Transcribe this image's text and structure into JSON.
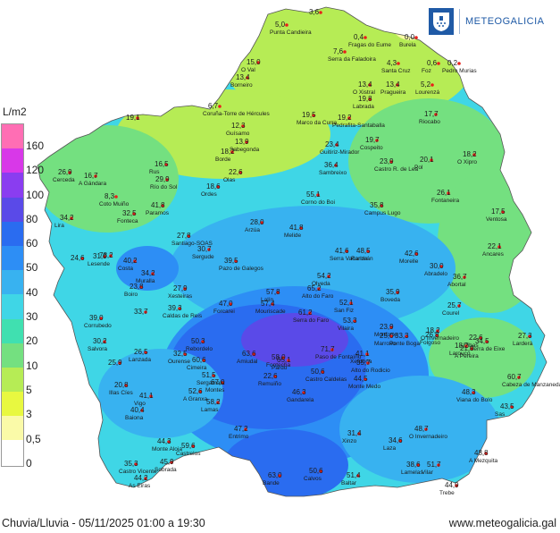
{
  "branding": {
    "name": "METEOGALICIA",
    "logo_icon": "galicia-shield-icon"
  },
  "legend": {
    "unit": "L/m2",
    "labels": [
      "160",
      "120",
      "100",
      "80",
      "60",
      "50",
      "40",
      "30",
      "20",
      "10",
      "5",
      "3",
      "0,5",
      "0"
    ],
    "colors": [
      "#ff6eb4",
      "#d838e8",
      "#8a3df0",
      "#5a4ae8",
      "#2a6cf0",
      "#2d8ef5",
      "#38b2f0",
      "#3fd6e6",
      "#40e0b0",
      "#74e080",
      "#b6ec55",
      "#e8f840",
      "#fafaa8",
      "#ffffff"
    ]
  },
  "footer": {
    "caption": "Chuvia/Lluvia - 05/11/2025 01:00 a 19:30",
    "url": "www.meteogalicia.gal"
  },
  "stations": [
    {
      "v": "5,0",
      "n": "Punta Candieira"
    },
    {
      "v": "3,6",
      "n": ""
    },
    {
      "v": "0,4",
      "n": "Fragas do Eume"
    },
    {
      "v": "7,6",
      "n": "Serra da Faladoira"
    },
    {
      "v": "0,0",
      "n": "Burela"
    },
    {
      "v": "15,0",
      "n": "O Val"
    },
    {
      "v": "4,3",
      "n": "Santa Cruz"
    },
    {
      "v": "0,6",
      "n": "Foz"
    },
    {
      "v": "0,2",
      "n": "Pedro Murias"
    },
    {
      "v": "13,4",
      "n": "O Xistral"
    },
    {
      "v": "13,4",
      "n": "Pragueira"
    },
    {
      "v": "5,2",
      "n": "Lourenzá"
    },
    {
      "v": "13,4",
      "n": "Borneiro"
    },
    {
      "v": "19,8",
      "n": "Labrada"
    },
    {
      "v": "6,7",
      "n": "Coruña-Torre de Hércules"
    },
    {
      "v": "19,1",
      "n": ""
    },
    {
      "v": "19,5",
      "n": "Marco da Curra"
    },
    {
      "v": "19,2",
      "n": "Pedrafita-Santaballa"
    },
    {
      "v": "17,7",
      "n": "Riocabo"
    },
    {
      "v": "12,3",
      "n": "Guísamo"
    },
    {
      "v": "13,9",
      "n": "Sabegonda"
    },
    {
      "v": "18,2",
      "n": "Borde"
    },
    {
      "v": "23,4",
      "n": "Guitiriz-Mirador"
    },
    {
      "v": "19,7",
      "n": "Cospeito"
    },
    {
      "v": "20,1",
      "n": "Pol"
    },
    {
      "v": "18,2",
      "n": "O Xipro"
    },
    {
      "v": "26,9",
      "n": "Cerceda"
    },
    {
      "v": "16,7",
      "n": "A Gándara"
    },
    {
      "v": "16,5",
      "n": "Rus"
    },
    {
      "v": "22,6",
      "n": "Olas"
    },
    {
      "v": "36,4",
      "n": "Sambreixo"
    },
    {
      "v": "23,9",
      "n": "Castro R. de Lea"
    },
    {
      "v": "29,9",
      "n": "Río do Sol"
    },
    {
      "v": "8,3",
      "n": "Coto Muiño"
    },
    {
      "v": "18,6",
      "n": "Ordes"
    },
    {
      "v": "55,1",
      "n": "Corno do Boi"
    },
    {
      "v": "41,8",
      "n": "Paramos"
    },
    {
      "v": "26,1",
      "n": "Fontaneira"
    },
    {
      "v": "32,5",
      "n": "Fonteca"
    },
    {
      "v": "35,8",
      "n": "Campus Lugo"
    },
    {
      "v": "17,5",
      "n": "Ventosa"
    },
    {
      "v": "34,2",
      "n": "Lira"
    },
    {
      "v": "28,0",
      "n": "Arzúa"
    },
    {
      "v": "41,8",
      "n": "Melide"
    },
    {
      "v": "27,8",
      "n": "Santiago-SOAS"
    },
    {
      "v": "30,7",
      "n": "Sergude"
    },
    {
      "v": "22,1",
      "n": "Ancares"
    },
    {
      "v": "24,6",
      "n": ""
    },
    {
      "v": "31,0",
      "n": "Lesende"
    },
    {
      "v": "41,6",
      "n": "Serra Vacariza"
    },
    {
      "v": "48,5",
      "n": "Ramirán"
    },
    {
      "v": "42,6",
      "n": "Morelle"
    },
    {
      "v": "78,2",
      "n": ""
    },
    {
      "v": "40,2",
      "n": "Costa"
    },
    {
      "v": "39,5",
      "n": "Pazo de Galegos"
    },
    {
      "v": "30,0",
      "n": "Abradelo"
    },
    {
      "v": "54,2",
      "n": "Olveda"
    },
    {
      "v": "34,2",
      "n": "Muralla"
    },
    {
      "v": "36,7",
      "n": "Abortal"
    },
    {
      "v": "23,8",
      "n": "Boiro"
    },
    {
      "v": "27,9",
      "n": "Xesteiras"
    },
    {
      "v": "65,2",
      "n": "Alto do Faro"
    },
    {
      "v": "57,8",
      "n": "Lalín"
    },
    {
      "v": "35,9",
      "n": "Boveda"
    },
    {
      "v": "47,0",
      "n": "Forcarei"
    },
    {
      "v": "57,4",
      "n": "Mouriscade"
    },
    {
      "v": "52,1",
      "n": "San Fiz"
    },
    {
      "v": "25,7",
      "n": "Courel"
    },
    {
      "v": "39,3",
      "n": "Caldas de Reis"
    },
    {
      "v": "33,7",
      "n": ""
    },
    {
      "v": "61,2",
      "n": "Serra do Faro"
    },
    {
      "v": "53,3",
      "n": "Vilaira"
    },
    {
      "v": "23,9",
      "n": "Monforte"
    },
    {
      "v": "39,0",
      "n": "Corrubedo"
    },
    {
      "v": "25,0",
      "n": "Marroxo"
    },
    {
      "v": "18,2",
      "n": "O Invernadeiro"
    },
    {
      "v": "30,2",
      "n": "Salvora"
    },
    {
      "v": "50,3",
      "n": "Rebordelo"
    },
    {
      "v": "71,7",
      "n": "Paso de Fontaíño"
    },
    {
      "v": "41,1",
      "n": "Xeronca"
    },
    {
      "v": "33,3",
      "n": "Ponte Boga"
    },
    {
      "v": "26,8",
      "n": "Folgoso"
    },
    {
      "v": "22,6",
      "n": "Ribas"
    },
    {
      "v": "63,6",
      "n": "Amiudal"
    },
    {
      "v": "21,0",
      "n": "A Pereira"
    },
    {
      "v": "27,3",
      "n": "Larderá"
    },
    {
      "v": "26,5",
      "n": "Lanzada"
    },
    {
      "v": "60,6",
      "n": "Cimeira"
    },
    {
      "v": "58,0",
      "n": "Fontecha"
    },
    {
      "v": "65,1",
      "n": "Pardo"
    },
    {
      "v": "50,6",
      "n": "Castro Caldelas"
    },
    {
      "v": "18,2",
      "n": "Larouco"
    },
    {
      "v": "34,5",
      "n": "Serra de Eixe"
    },
    {
      "v": "25,9",
      "n": ""
    },
    {
      "v": "32,5",
      "n": "Ourense"
    },
    {
      "v": "67,0",
      "n": "Montes"
    },
    {
      "v": "35,7",
      "n": "Alto do Rodicio"
    },
    {
      "v": "51,5",
      "n": "Sergamala"
    },
    {
      "v": "22,6",
      "n": "Remuiño"
    },
    {
      "v": "44,5",
      "n": "Monte Medo"
    },
    {
      "v": "20,8",
      "n": "Illas Cíes"
    },
    {
      "v": "60,7",
      "n": "Cabeza de Manzaneda"
    },
    {
      "v": "43,5",
      "n": "Sas"
    },
    {
      "v": "52,6",
      "n": "A Granxa"
    },
    {
      "v": "46,3",
      "n": "Gandarela"
    },
    {
      "v": "48,3",
      "n": "Viana do Bolo"
    },
    {
      "v": "41,1",
      "n": "Vigo"
    },
    {
      "v": "58,2",
      "n": "Lamas"
    },
    {
      "v": "47,2",
      "n": "Entrimo"
    },
    {
      "v": "31,4",
      "n": "Xinzo"
    },
    {
      "v": "48,7",
      "n": "O Invernadeiro"
    },
    {
      "v": "40,4",
      "n": "Baiona"
    },
    {
      "v": "44,3",
      "n": "Monte Aloia"
    },
    {
      "v": "59,6",
      "n": "Castrelos"
    },
    {
      "v": "34,6",
      "n": "Laza"
    },
    {
      "v": "48,8",
      "n": "A Mezquita"
    },
    {
      "v": "45,9",
      "n": "Sobrada"
    },
    {
      "v": "35,3",
      "n": "Castro Vicente"
    },
    {
      "v": "50,6",
      "n": "Calvos"
    },
    {
      "v": "51,4",
      "n": "Baltar"
    },
    {
      "v": "38,6",
      "n": "Lamelas"
    },
    {
      "v": "51,7",
      "n": "Vilar"
    },
    {
      "v": "44,2",
      "n": "As Eiras"
    },
    {
      "v": "63,0",
      "n": "Bande"
    },
    {
      "v": "44,9",
      "n": "Trebe"
    }
  ]
}
